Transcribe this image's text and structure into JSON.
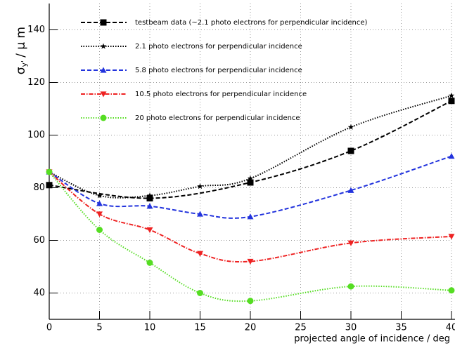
{
  "chart_data": {
    "type": "line",
    "ylabel": {
      "symbol": "σ",
      "subscript": "y'",
      "unit": "/ μ m"
    },
    "xlabel": "projected angle of incidence / deg",
    "xlim": [
      0,
      40
    ],
    "ylim": [
      30,
      150
    ],
    "xticks": [
      0,
      5,
      10,
      15,
      20,
      25,
      30,
      35,
      40
    ],
    "yticks": [
      40,
      60,
      80,
      100,
      120,
      140
    ],
    "grid": true,
    "legend": "upper left",
    "series": [
      {
        "name": "testbeam data (~2.1 photo electrons for perpendicular incidence)",
        "color": "#000000",
        "marker": "square",
        "dash": "6,3",
        "x": [
          0,
          10,
          20,
          30,
          40
        ],
        "values": [
          81,
          76,
          82,
          94,
          113
        ]
      },
      {
        "name": "2.1 photo electrons for perpendicular incidence",
        "color": "#000000",
        "marker": "star",
        "dash": "1.5,2",
        "x": [
          0,
          5,
          10,
          15,
          20,
          30,
          40
        ],
        "values": [
          86,
          77,
          77,
          80.5,
          83.5,
          103,
          115
        ]
      },
      {
        "name": "5.8 photo electrons for perpendicular incidence",
        "color": "#2233dd",
        "marker": "triangle",
        "dash": "6,3",
        "x": [
          0,
          5,
          10,
          15,
          20,
          30,
          40
        ],
        "values": [
          86,
          74,
          73,
          70,
          69,
          79,
          92
        ]
      },
      {
        "name": "10.5 photo electrons for perpendicular incidence",
        "color": "#ee2222",
        "marker": "triangle-down",
        "dash": "6,2,1.5,2",
        "x": [
          0,
          5,
          10,
          15,
          20,
          30,
          40
        ],
        "values": [
          86,
          70,
          64,
          55,
          52,
          59,
          61.5
        ]
      },
      {
        "name": "20 photo electrons for perpendicular incidence",
        "color": "#55dd22",
        "marker": "circle",
        "dash": "1.5,2",
        "x": [
          0,
          5,
          10,
          15,
          20,
          30,
          40
        ],
        "values": [
          86,
          64,
          51.5,
          40,
          37,
          42.5,
          41
        ]
      }
    ]
  }
}
